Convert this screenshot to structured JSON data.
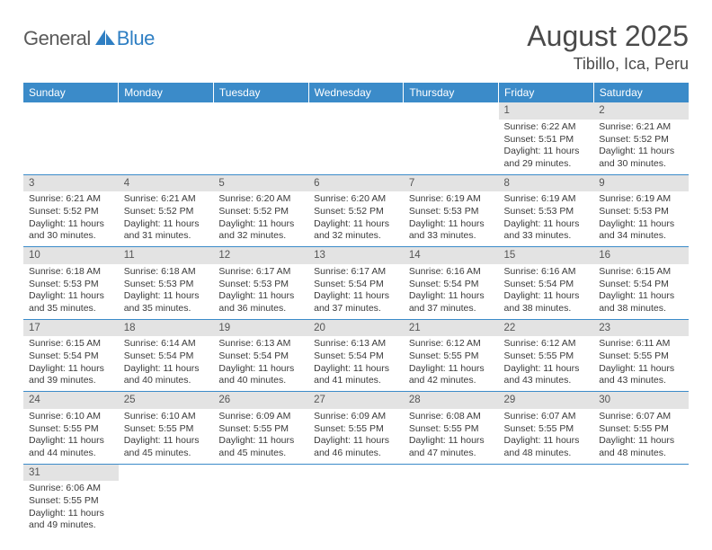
{
  "logo": {
    "general": "General",
    "blue": "Blue"
  },
  "header": {
    "title": "August 2025",
    "location": "Tibillo, Ica, Peru"
  },
  "colors": {
    "header_bg": "#3b8bc9",
    "header_text": "#ffffff",
    "daynum_bg": "#e3e3e3",
    "row_divider": "#3b8bc9",
    "body_text": "#3a3a3a",
    "logo_gray": "#5a5a5a",
    "logo_blue": "#2f7fc3"
  },
  "weekdays": [
    "Sunday",
    "Monday",
    "Tuesday",
    "Wednesday",
    "Thursday",
    "Friday",
    "Saturday"
  ],
  "weeks": [
    [
      null,
      null,
      null,
      null,
      null,
      {
        "n": "1",
        "sr": "6:22 AM",
        "ss": "5:51 PM",
        "dl": "11 hours and 29 minutes."
      },
      {
        "n": "2",
        "sr": "6:21 AM",
        "ss": "5:52 PM",
        "dl": "11 hours and 30 minutes."
      }
    ],
    [
      {
        "n": "3",
        "sr": "6:21 AM",
        "ss": "5:52 PM",
        "dl": "11 hours and 30 minutes."
      },
      {
        "n": "4",
        "sr": "6:21 AM",
        "ss": "5:52 PM",
        "dl": "11 hours and 31 minutes."
      },
      {
        "n": "5",
        "sr": "6:20 AM",
        "ss": "5:52 PM",
        "dl": "11 hours and 32 minutes."
      },
      {
        "n": "6",
        "sr": "6:20 AM",
        "ss": "5:52 PM",
        "dl": "11 hours and 32 minutes."
      },
      {
        "n": "7",
        "sr": "6:19 AM",
        "ss": "5:53 PM",
        "dl": "11 hours and 33 minutes."
      },
      {
        "n": "8",
        "sr": "6:19 AM",
        "ss": "5:53 PM",
        "dl": "11 hours and 33 minutes."
      },
      {
        "n": "9",
        "sr": "6:19 AM",
        "ss": "5:53 PM",
        "dl": "11 hours and 34 minutes."
      }
    ],
    [
      {
        "n": "10",
        "sr": "6:18 AM",
        "ss": "5:53 PM",
        "dl": "11 hours and 35 minutes."
      },
      {
        "n": "11",
        "sr": "6:18 AM",
        "ss": "5:53 PM",
        "dl": "11 hours and 35 minutes."
      },
      {
        "n": "12",
        "sr": "6:17 AM",
        "ss": "5:53 PM",
        "dl": "11 hours and 36 minutes."
      },
      {
        "n": "13",
        "sr": "6:17 AM",
        "ss": "5:54 PM",
        "dl": "11 hours and 37 minutes."
      },
      {
        "n": "14",
        "sr": "6:16 AM",
        "ss": "5:54 PM",
        "dl": "11 hours and 37 minutes."
      },
      {
        "n": "15",
        "sr": "6:16 AM",
        "ss": "5:54 PM",
        "dl": "11 hours and 38 minutes."
      },
      {
        "n": "16",
        "sr": "6:15 AM",
        "ss": "5:54 PM",
        "dl": "11 hours and 38 minutes."
      }
    ],
    [
      {
        "n": "17",
        "sr": "6:15 AM",
        "ss": "5:54 PM",
        "dl": "11 hours and 39 minutes."
      },
      {
        "n": "18",
        "sr": "6:14 AM",
        "ss": "5:54 PM",
        "dl": "11 hours and 40 minutes."
      },
      {
        "n": "19",
        "sr": "6:13 AM",
        "ss": "5:54 PM",
        "dl": "11 hours and 40 minutes."
      },
      {
        "n": "20",
        "sr": "6:13 AM",
        "ss": "5:54 PM",
        "dl": "11 hours and 41 minutes."
      },
      {
        "n": "21",
        "sr": "6:12 AM",
        "ss": "5:55 PM",
        "dl": "11 hours and 42 minutes."
      },
      {
        "n": "22",
        "sr": "6:12 AM",
        "ss": "5:55 PM",
        "dl": "11 hours and 43 minutes."
      },
      {
        "n": "23",
        "sr": "6:11 AM",
        "ss": "5:55 PM",
        "dl": "11 hours and 43 minutes."
      }
    ],
    [
      {
        "n": "24",
        "sr": "6:10 AM",
        "ss": "5:55 PM",
        "dl": "11 hours and 44 minutes."
      },
      {
        "n": "25",
        "sr": "6:10 AM",
        "ss": "5:55 PM",
        "dl": "11 hours and 45 minutes."
      },
      {
        "n": "26",
        "sr": "6:09 AM",
        "ss": "5:55 PM",
        "dl": "11 hours and 45 minutes."
      },
      {
        "n": "27",
        "sr": "6:09 AM",
        "ss": "5:55 PM",
        "dl": "11 hours and 46 minutes."
      },
      {
        "n": "28",
        "sr": "6:08 AM",
        "ss": "5:55 PM",
        "dl": "11 hours and 47 minutes."
      },
      {
        "n": "29",
        "sr": "6:07 AM",
        "ss": "5:55 PM",
        "dl": "11 hours and 48 minutes."
      },
      {
        "n": "30",
        "sr": "6:07 AM",
        "ss": "5:55 PM",
        "dl": "11 hours and 48 minutes."
      }
    ],
    [
      {
        "n": "31",
        "sr": "6:06 AM",
        "ss": "5:55 PM",
        "dl": "11 hours and 49 minutes."
      },
      null,
      null,
      null,
      null,
      null,
      null
    ]
  ],
  "labels": {
    "sunrise": "Sunrise: ",
    "sunset": "Sunset: ",
    "daylight": "Daylight: "
  }
}
